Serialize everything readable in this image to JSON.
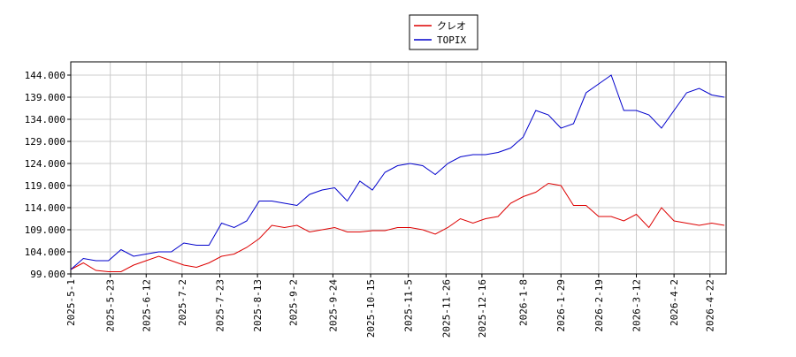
{
  "chart_data": {
    "type": "line",
    "x": [
      "2025-5-1",
      "2025-5-8",
      "2025-5-15",
      "2025-5-22",
      "2025-5-29",
      "2025-6-5",
      "2025-6-12",
      "2025-6-19",
      "2025-6-26",
      "2025-7-3",
      "2025-7-10",
      "2025-7-17",
      "2025-7-24",
      "2025-7-31",
      "2025-8-7",
      "2025-8-14",
      "2025-8-21",
      "2025-8-28",
      "2025-9-4",
      "2025-9-11",
      "2025-9-18",
      "2025-9-25",
      "2025-10-2",
      "2025-10-9",
      "2025-10-16",
      "2025-10-23",
      "2025-10-30",
      "2025-11-6",
      "2025-11-13",
      "2025-11-20",
      "2025-11-27",
      "2025-12-4",
      "2025-12-11",
      "2025-12-18",
      "2025-12-25",
      "2026-1-1",
      "2026-1-8",
      "2026-1-15",
      "2026-1-22",
      "2026-1-29",
      "2026-2-5",
      "2026-2-12",
      "2026-2-19",
      "2026-2-26",
      "2026-3-5",
      "2026-3-12",
      "2026-3-19",
      "2026-3-26",
      "2026-4-2",
      "2026-4-9",
      "2026-4-16",
      "2026-4-23",
      "2026-4-30"
    ],
    "series": [
      {
        "name": "クレオ",
        "color": "#dd0000",
        "values": [
          100,
          101.5,
          99.8,
          99.5,
          99.5,
          101,
          102,
          103,
          102,
          101,
          100.5,
          101.5,
          103,
          103.5,
          105,
          107,
          110,
          109.5,
          110,
          108.5,
          109,
          109.5,
          108.5,
          108.5,
          108.8,
          108.8,
          109.5,
          109.5,
          109,
          108,
          109.5,
          111.5,
          110.5,
          111.5,
          112,
          115,
          116.5,
          117.5,
          119.5,
          119,
          114.5,
          114.5,
          112,
          112,
          111,
          112.5,
          109.5,
          114,
          111,
          110.5,
          110,
          110.5,
          110
        ]
      },
      {
        "name": "TOPIX",
        "color": "#0000cc",
        "values": [
          100,
          102.5,
          102,
          102,
          104.5,
          103,
          103.5,
          104,
          104,
          106,
          105.5,
          105.5,
          110.5,
          109.5,
          111,
          115.5,
          115.5,
          115,
          114.5,
          117,
          118,
          118.5,
          115.5,
          120,
          118,
          122,
          123.5,
          124,
          123.5,
          121.5,
          124,
          125.5,
          126,
          126,
          126.5,
          127.5,
          130,
          136,
          135,
          132,
          133,
          140,
          142,
          144,
          136,
          136,
          135,
          132,
          136,
          140,
          141,
          139.5,
          139
        ]
      }
    ],
    "xlim": [
      "2025-5-1",
      "2026-5-1"
    ],
    "xticks": [
      "2025-5-1",
      "2025-5-23",
      "2025-6-12",
      "2025-7-2",
      "2025-7-23",
      "2025-8-13",
      "2025-9-2",
      "2025-9-24",
      "2025-10-15",
      "2025-11-5",
      "2025-11-26",
      "2025-12-16",
      "2026-1-8",
      "2026-1-29",
      "2026-2-19",
      "2026-3-12",
      "2026-4-2",
      "2026-4-22"
    ],
    "ylim": [
      99,
      147
    ],
    "yticks": [
      {
        "value": 99,
        "label": "99.000"
      },
      {
        "value": 104,
        "label": "104.000"
      },
      {
        "value": 109,
        "label": "109.000"
      },
      {
        "value": 114,
        "label": "114.000"
      },
      {
        "value": 119,
        "label": "119.000"
      },
      {
        "value": 124,
        "label": "124.000"
      },
      {
        "value": 129,
        "label": "129.000"
      },
      {
        "value": 134,
        "label": "134.000"
      },
      {
        "value": 139,
        "label": "139.000"
      },
      {
        "value": 144,
        "label": "144.000"
      }
    ],
    "grid": true,
    "legend": "top"
  }
}
